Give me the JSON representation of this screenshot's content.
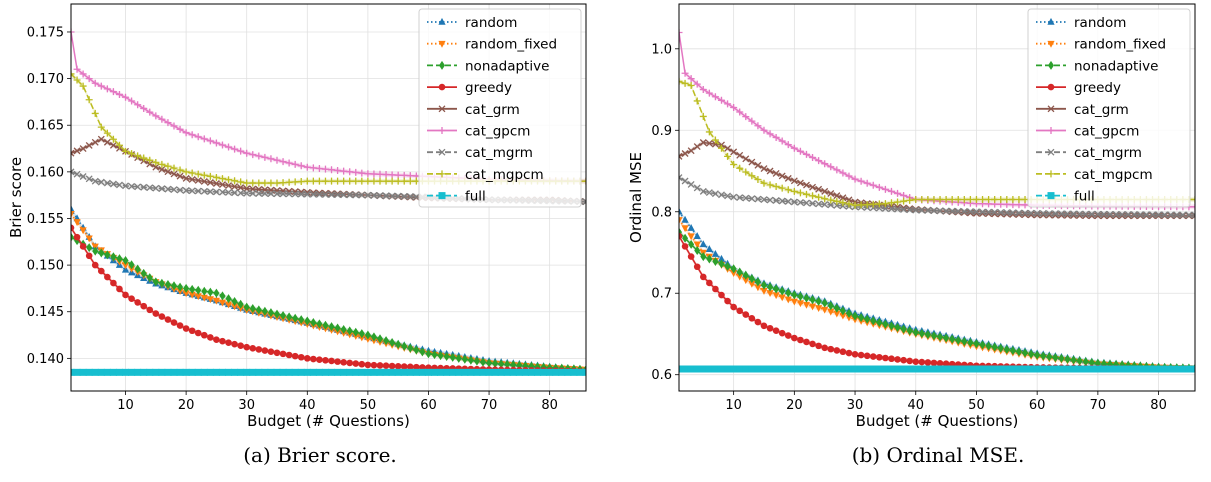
{
  "chart_data": [
    {
      "type": "line",
      "caption": "(a) Brier score.",
      "xlabel": "Budget (# Questions)",
      "ylabel": "Brier score",
      "xlim": [
        1,
        86
      ],
      "ylim": [
        0.1365,
        0.178
      ],
      "xticks": [
        10,
        20,
        30,
        40,
        50,
        60,
        70,
        80
      ],
      "yticks": [
        0.14,
        0.145,
        0.15,
        0.155,
        0.16,
        0.165,
        0.17,
        0.175
      ],
      "ytick_labels": [
        "0.140",
        "0.145",
        "0.150",
        "0.155",
        "0.160",
        "0.165",
        "0.170",
        "0.175"
      ],
      "grid": true,
      "legend_position": "top-right",
      "series": [
        {
          "name": "random",
          "color": "#1f77b4",
          "style": "dotted",
          "marker": "triangle-up",
          "points": [
            [
              1,
              0.156
            ],
            [
              5,
              0.152
            ],
            [
              10,
              0.1495
            ],
            [
              15,
              0.148
            ],
            [
              20,
              0.147
            ],
            [
              25,
              0.1462
            ],
            [
              30,
              0.1452
            ],
            [
              40,
              0.1438
            ],
            [
              50,
              0.1423
            ],
            [
              60,
              0.1408
            ],
            [
              70,
              0.1397
            ],
            [
              80,
              0.1391
            ],
            [
              86,
              0.1388
            ]
          ]
        },
        {
          "name": "random_fixed",
          "color": "#ff7f0e",
          "style": "dotted",
          "marker": "triangle-down",
          "points": [
            [
              1,
              0.1555
            ],
            [
              5,
              0.152
            ],
            [
              10,
              0.15
            ],
            [
              15,
              0.1482
            ],
            [
              20,
              0.147
            ],
            [
              25,
              0.1462
            ],
            [
              30,
              0.1452
            ],
            [
              40,
              0.1437
            ],
            [
              50,
              0.1421
            ],
            [
              60,
              0.1405
            ],
            [
              70,
              0.1395
            ],
            [
              80,
              0.139
            ],
            [
              86,
              0.1388
            ]
          ]
        },
        {
          "name": "nonadaptive",
          "color": "#2ca02c",
          "style": "dashed",
          "marker": "diamond",
          "points": [
            [
              1,
              0.153
            ],
            [
              5,
              0.1515
            ],
            [
              10,
              0.1505
            ],
            [
              15,
              0.1482
            ],
            [
              20,
              0.1475
            ],
            [
              25,
              0.147
            ],
            [
              30,
              0.1455
            ],
            [
              40,
              0.144
            ],
            [
              50,
              0.1425
            ],
            [
              60,
              0.1405
            ],
            [
              70,
              0.1395
            ],
            [
              80,
              0.139
            ],
            [
              86,
              0.1388
            ]
          ]
        },
        {
          "name": "greedy",
          "color": "#d62728",
          "style": "solid",
          "marker": "circle",
          "points": [
            [
              1,
              0.154
            ],
            [
              5,
              0.15
            ],
            [
              10,
              0.1468
            ],
            [
              15,
              0.1448
            ],
            [
              20,
              0.1432
            ],
            [
              25,
              0.142
            ],
            [
              30,
              0.1412
            ],
            [
              40,
              0.14
            ],
            [
              50,
              0.1393
            ],
            [
              60,
              0.139
            ],
            [
              70,
              0.1388
            ],
            [
              86,
              0.1386
            ]
          ]
        },
        {
          "name": "cat_grm",
          "color": "#8c564b",
          "style": "solid",
          "marker": "x",
          "points": [
            [
              1,
              0.162
            ],
            [
              3,
              0.1625
            ],
            [
              6,
              0.1635
            ],
            [
              10,
              0.1622
            ],
            [
              15,
              0.1605
            ],
            [
              20,
              0.1593
            ],
            [
              30,
              0.1582
            ],
            [
              40,
              0.1578
            ],
            [
              50,
              0.1575
            ],
            [
              60,
              0.1572
            ],
            [
              70,
              0.157
            ],
            [
              80,
              0.157
            ],
            [
              86,
              0.1568
            ]
          ]
        },
        {
          "name": "cat_gpcm",
          "color": "#e377c2",
          "style": "solid",
          "marker": "plus",
          "points": [
            [
              1,
              0.175
            ],
            [
              2,
              0.171
            ],
            [
              5,
              0.1695
            ],
            [
              10,
              0.168
            ],
            [
              15,
              0.166
            ],
            [
              20,
              0.1642
            ],
            [
              30,
              0.162
            ],
            [
              40,
              0.1605
            ],
            [
              50,
              0.1598
            ],
            [
              60,
              0.1595
            ],
            [
              70,
              0.1592
            ],
            [
              86,
              0.159
            ]
          ]
        },
        {
          "name": "cat_mgrm",
          "color": "#7f7f7f",
          "style": "dashed",
          "marker": "x",
          "points": [
            [
              1,
              0.16
            ],
            [
              5,
              0.159
            ],
            [
              10,
              0.1585
            ],
            [
              20,
              0.158
            ],
            [
              30,
              0.1577
            ],
            [
              40,
              0.1576
            ],
            [
              50,
              0.1575
            ],
            [
              60,
              0.1573
            ],
            [
              70,
              0.157
            ],
            [
              86,
              0.1568
            ]
          ]
        },
        {
          "name": "cat_mgpcm",
          "color": "#bcbd22",
          "style": "dashed",
          "marker": "plus",
          "points": [
            [
              1,
              0.1705
            ],
            [
              3,
              0.1692
            ],
            [
              6,
              0.1648
            ],
            [
              10,
              0.1622
            ],
            [
              15,
              0.161
            ],
            [
              20,
              0.16
            ],
            [
              30,
              0.1588
            ],
            [
              35,
              0.1588
            ],
            [
              40,
              0.159
            ],
            [
              50,
              0.159
            ],
            [
              60,
              0.159
            ],
            [
              70,
              0.159
            ],
            [
              86,
              0.159
            ]
          ]
        },
        {
          "name": "full",
          "color": "#17becf",
          "style": "dashed",
          "marker": "square",
          "points": [
            [
              1,
              0.1385
            ],
            [
              86,
              0.1385
            ]
          ]
        }
      ]
    },
    {
      "type": "line",
      "caption": "(b) Ordinal MSE.",
      "xlabel": "Budget (# Questions)",
      "ylabel": "Ordinal MSE",
      "xlim": [
        1,
        86
      ],
      "ylim": [
        0.58,
        1.055
      ],
      "xticks": [
        10,
        20,
        30,
        40,
        50,
        60,
        70,
        80
      ],
      "yticks": [
        0.6,
        0.7,
        0.8,
        0.9,
        1.0
      ],
      "ytick_labels": [
        "0.6",
        "0.7",
        "0.8",
        "0.9",
        "1.0"
      ],
      "grid": true,
      "legend_position": "top-right",
      "series": [
        {
          "name": "random",
          "color": "#1f77b4",
          "style": "dotted",
          "marker": "triangle-up",
          "points": [
            [
              1,
              0.8
            ],
            [
              5,
              0.76
            ],
            [
              10,
              0.73
            ],
            [
              15,
              0.712
            ],
            [
              20,
              0.7
            ],
            [
              25,
              0.69
            ],
            [
              30,
              0.675
            ],
            [
              40,
              0.655
            ],
            [
              50,
              0.64
            ],
            [
              60,
              0.626
            ],
            [
              70,
              0.615
            ],
            [
              80,
              0.61
            ],
            [
              86,
              0.608
            ]
          ]
        },
        {
          "name": "random_fixed",
          "color": "#ff7f0e",
          "style": "dotted",
          "marker": "triangle-down",
          "points": [
            [
              1,
              0.79
            ],
            [
              5,
              0.75
            ],
            [
              10,
              0.725
            ],
            [
              15,
              0.703
            ],
            [
              20,
              0.69
            ],
            [
              25,
              0.68
            ],
            [
              30,
              0.668
            ],
            [
              40,
              0.65
            ],
            [
              50,
              0.635
            ],
            [
              60,
              0.622
            ],
            [
              70,
              0.613
            ],
            [
              80,
              0.609
            ],
            [
              86,
              0.608
            ]
          ]
        },
        {
          "name": "nonadaptive",
          "color": "#2ca02c",
          "style": "dashed",
          "marker": "diamond",
          "points": [
            [
              1,
              0.775
            ],
            [
              5,
              0.745
            ],
            [
              10,
              0.73
            ],
            [
              15,
              0.71
            ],
            [
              20,
              0.698
            ],
            [
              25,
              0.688
            ],
            [
              30,
              0.672
            ],
            [
              40,
              0.652
            ],
            [
              50,
              0.638
            ],
            [
              60,
              0.624
            ],
            [
              70,
              0.614
            ],
            [
              80,
              0.609
            ],
            [
              86,
              0.608
            ]
          ]
        },
        {
          "name": "greedy",
          "color": "#d62728",
          "style": "solid",
          "marker": "circle",
          "points": [
            [
              1,
              0.77
            ],
            [
              5,
              0.72
            ],
            [
              10,
              0.683
            ],
            [
              15,
              0.66
            ],
            [
              20,
              0.645
            ],
            [
              25,
              0.633
            ],
            [
              30,
              0.625
            ],
            [
              40,
              0.616
            ],
            [
              50,
              0.611
            ],
            [
              60,
              0.609
            ],
            [
              70,
              0.608
            ],
            [
              86,
              0.607
            ]
          ]
        },
        {
          "name": "cat_grm",
          "color": "#8c564b",
          "style": "solid",
          "marker": "x",
          "points": [
            [
              1,
              0.868
            ],
            [
              3,
              0.875
            ],
            [
              5,
              0.885
            ],
            [
              8,
              0.882
            ],
            [
              12,
              0.865
            ],
            [
              15,
              0.853
            ],
            [
              20,
              0.838
            ],
            [
              30,
              0.812
            ],
            [
              40,
              0.803
            ],
            [
              50,
              0.798
            ],
            [
              60,
              0.796
            ],
            [
              70,
              0.795
            ],
            [
              86,
              0.795
            ]
          ]
        },
        {
          "name": "cat_gpcm",
          "color": "#e377c2",
          "style": "solid",
          "marker": "plus",
          "points": [
            [
              1,
              1.02
            ],
            [
              2,
              0.97
            ],
            [
              5,
              0.95
            ],
            [
              10,
              0.928
            ],
            [
              15,
              0.9
            ],
            [
              20,
              0.878
            ],
            [
              30,
              0.84
            ],
            [
              40,
              0.815
            ],
            [
              50,
              0.81
            ],
            [
              60,
              0.808
            ],
            [
              70,
              0.807
            ],
            [
              86,
              0.806
            ]
          ]
        },
        {
          "name": "cat_mgrm",
          "color": "#7f7f7f",
          "style": "dashed",
          "marker": "x",
          "points": [
            [
              1,
              0.842
            ],
            [
              5,
              0.825
            ],
            [
              10,
              0.818
            ],
            [
              15,
              0.815
            ],
            [
              20,
              0.812
            ],
            [
              30,
              0.806
            ],
            [
              40,
              0.802
            ],
            [
              50,
              0.8
            ],
            [
              60,
              0.798
            ],
            [
              70,
              0.797
            ],
            [
              86,
              0.796
            ]
          ]
        },
        {
          "name": "cat_mgpcm",
          "color": "#bcbd22",
          "style": "dashed",
          "marker": "plus",
          "points": [
            [
              1,
              0.96
            ],
            [
              3,
              0.955
            ],
            [
              6,
              0.898
            ],
            [
              10,
              0.858
            ],
            [
              15,
              0.835
            ],
            [
              20,
              0.825
            ],
            [
              25,
              0.816
            ],
            [
              30,
              0.808
            ],
            [
              35,
              0.81
            ],
            [
              40,
              0.815
            ],
            [
              50,
              0.815
            ],
            [
              60,
              0.815
            ],
            [
              70,
              0.815
            ],
            [
              86,
              0.815
            ]
          ]
        },
        {
          "name": "full",
          "color": "#17becf",
          "style": "dashed",
          "marker": "square",
          "points": [
            [
              1,
              0.607
            ],
            [
              86,
              0.607
            ]
          ]
        }
      ]
    }
  ]
}
